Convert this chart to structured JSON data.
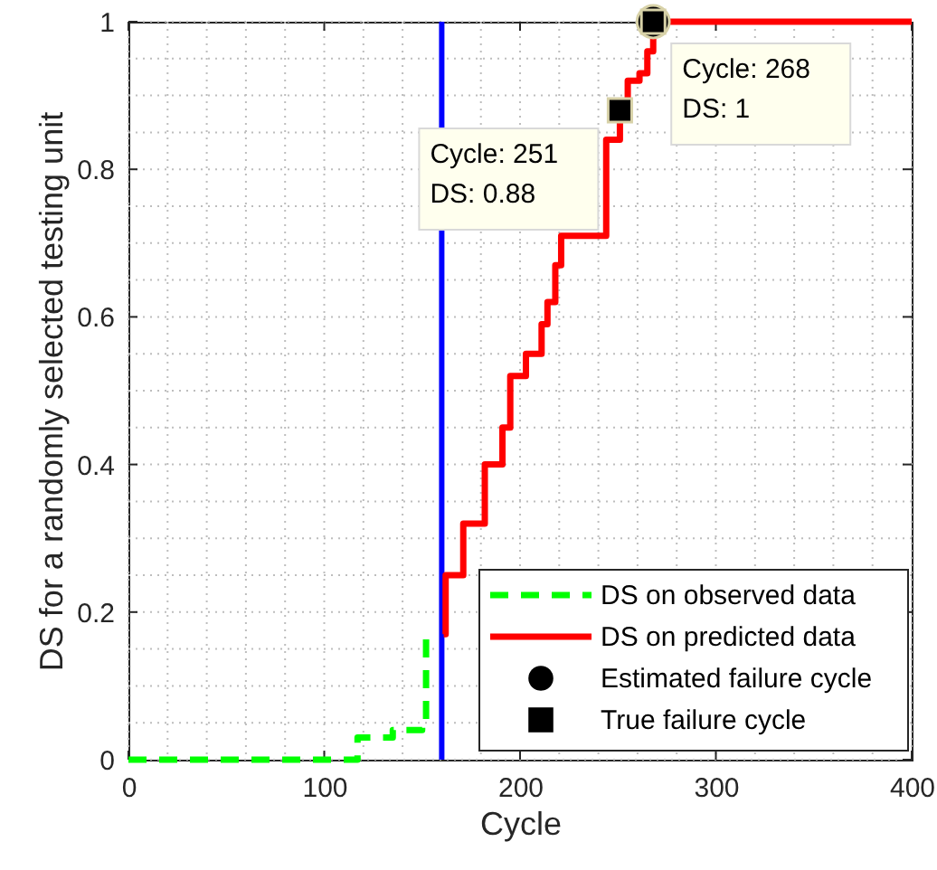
{
  "chart_data": {
    "type": "line",
    "xlabel": "Cycle",
    "ylabel": "DS for a randomly selected testing unit",
    "xlim": [
      0,
      400
    ],
    "xticks": [
      0,
      100,
      200,
      300,
      400
    ],
    "ylim": [
      0,
      1
    ],
    "yticks": [
      0,
      0.2,
      0.4,
      0.6,
      0.8,
      1
    ],
    "grid": true,
    "legend": "bottom right",
    "line_style": "solid",
    "series": [
      {
        "name": "DS on observed data",
        "type": "step",
        "line_style": "dashed",
        "color": "#00ff00",
        "x": [
          0,
          117,
          135,
          150,
          152,
          153
        ],
        "values": [
          0,
          0.03,
          0.04,
          0.05,
          0.17,
          0.17
        ]
      },
      {
        "name": "DS on predicted data",
        "type": "step",
        "color": "#ff0000",
        "x": [
          161,
          162,
          171,
          182,
          191,
          195,
          203,
          211,
          214,
          218,
          221,
          244,
          251,
          255,
          261,
          265,
          268,
          400
        ],
        "values": [
          0.17,
          0.25,
          0.32,
          0.4,
          0.45,
          0.52,
          0.55,
          0.59,
          0.62,
          0.67,
          0.71,
          0.84,
          0.88,
          0.92,
          0.93,
          0.96,
          1,
          1
        ]
      },
      {
        "name": "Estimated failure cycle",
        "type": "scatter",
        "marker": "circle",
        "color": "#000000",
        "x": [
          268
        ],
        "values": [
          1
        ]
      },
      {
        "name": "True failure cycle",
        "type": "scatter",
        "marker": "square",
        "color": "#000000",
        "x": [
          251,
          268
        ],
        "values": [
          0.88,
          1
        ]
      }
    ],
    "ref_lines": [
      {
        "axis": "x",
        "value": 160,
        "color": "#0000ff"
      }
    ],
    "annotations": [
      {
        "text": "Cycle: 251\nDS: 0.88",
        "x": 251,
        "y": 0.88
      },
      {
        "text": "Cycle: 268\nDS: 1",
        "x": 268,
        "y": 1
      }
    ]
  }
}
